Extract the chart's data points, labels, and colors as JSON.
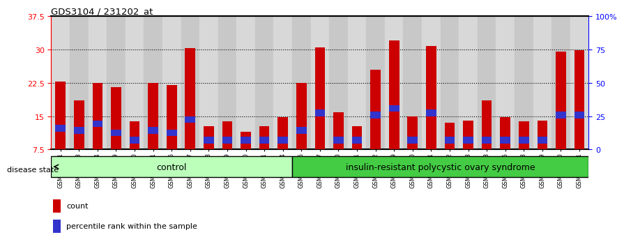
{
  "title": "GDS3104 / 231202_at",
  "samples": [
    "GSM155631",
    "GSM155643",
    "GSM155644",
    "GSM155729",
    "GSM156170",
    "GSM156171",
    "GSM156176",
    "GSM156177",
    "GSM156178",
    "GSM156179",
    "GSM156180",
    "GSM156181",
    "GSM156184",
    "GSM156186",
    "GSM156187",
    "GSM156510",
    "GSM156511",
    "GSM156512",
    "GSM156749",
    "GSM156750",
    "GSM156751",
    "GSM156752",
    "GSM156753",
    "GSM156763",
    "GSM156946",
    "GSM156948",
    "GSM156949",
    "GSM156950",
    "GSM156951"
  ],
  "count_values": [
    22.8,
    18.5,
    22.5,
    21.5,
    13.8,
    22.5,
    22.0,
    30.3,
    12.8,
    13.8,
    11.5,
    12.8,
    14.7,
    22.5,
    30.5,
    15.8,
    12.8,
    25.5,
    32.0,
    15.0,
    30.7,
    13.5,
    14.0,
    18.5,
    14.8,
    13.8,
    14.0,
    29.5,
    29.8
  ],
  "percentile_bottoms": [
    11.5,
    11.0,
    12.5,
    10.5,
    8.8,
    11.0,
    10.5,
    13.5,
    8.8,
    8.8,
    8.8,
    8.8,
    8.8,
    11.0,
    15.0,
    8.8,
    8.8,
    14.5,
    16.0,
    8.8,
    15.0,
    8.8,
    8.8,
    8.8,
    8.8,
    8.8,
    8.8,
    14.5,
    14.5
  ],
  "percentile_heights": [
    1.5,
    1.5,
    1.5,
    1.5,
    1.5,
    1.5,
    1.5,
    1.5,
    1.5,
    1.5,
    1.5,
    1.5,
    1.5,
    1.5,
    1.5,
    1.5,
    1.5,
    1.5,
    1.5,
    1.5,
    1.5,
    1.5,
    1.5,
    1.5,
    1.5,
    1.5,
    1.5,
    1.5,
    1.5
  ],
  "control_count": 13,
  "disease_count": 16,
  "bar_color": "#cc0000",
  "blue_color": "#3333cc",
  "control_color": "#bbffbb",
  "disease_color": "#44cc44",
  "col_colors": [
    "#d8d8d8",
    "#c8c8c8"
  ],
  "ylim_low": 7.5,
  "ylim_high": 37.5,
  "yticks": [
    7.5,
    15.0,
    22.5,
    30.0,
    37.5
  ],
  "ytick_labels": [
    "7.5",
    "15",
    "22.5",
    "30",
    "37.5"
  ],
  "right_ytick_pcts": [
    0,
    25,
    50,
    75,
    100
  ],
  "right_ytick_labels": [
    "0",
    "25",
    "50",
    "75",
    "100%"
  ],
  "gridlines": [
    15.0,
    22.5,
    30.0
  ],
  "bar_width": 0.55
}
